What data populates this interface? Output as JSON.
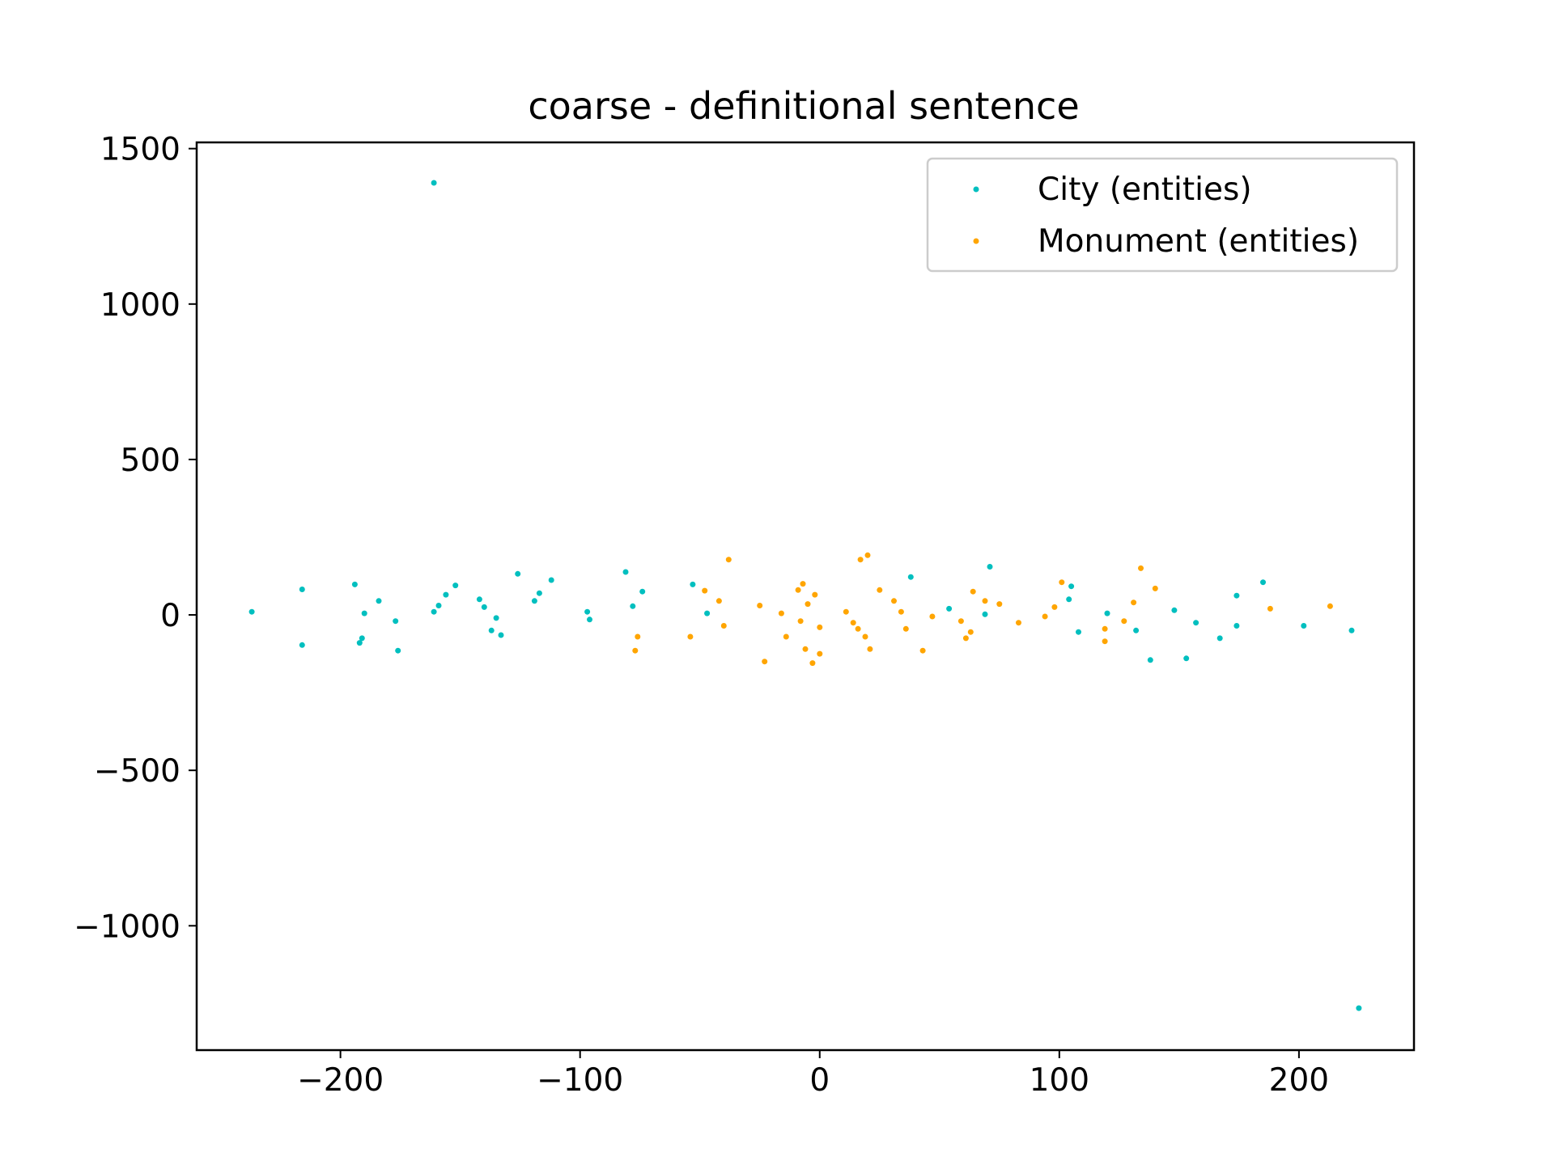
{
  "chart_data": {
    "type": "scatter",
    "title": "coarse - definitional sentence",
    "xlabel": "",
    "ylabel": "",
    "xlim": [
      -260,
      248
    ],
    "ylim": [
      -1400,
      1520
    ],
    "xticks": [
      -200,
      -100,
      0,
      100,
      200
    ],
    "yticks": [
      -1000,
      -500,
      0,
      500,
      1000,
      1500
    ],
    "xtick_labels": [
      "−200",
      "−100",
      "0",
      "100",
      "200"
    ],
    "ytick_labels": [
      "−1000",
      "−500",
      "0",
      "500",
      "1000",
      "1500"
    ],
    "grid": false,
    "legend_position": "top-right",
    "series": [
      {
        "name": "City (entities)",
        "color": "#00bfbf",
        "points": [
          [
            -237,
            10
          ],
          [
            -216,
            82
          ],
          [
            -216,
            -97
          ],
          [
            -194,
            98
          ],
          [
            -192,
            -90
          ],
          [
            -191,
            -75
          ],
          [
            -190,
            5
          ],
          [
            -184,
            45
          ],
          [
            -177,
            -20
          ],
          [
            -176,
            -115
          ],
          [
            -161,
            1390
          ],
          [
            -161,
            10
          ],
          [
            -159,
            30
          ],
          [
            -156,
            65
          ],
          [
            -152,
            95
          ],
          [
            -142,
            50
          ],
          [
            -140,
            25
          ],
          [
            -137,
            -50
          ],
          [
            -135,
            -10
          ],
          [
            -133,
            -65
          ],
          [
            -126,
            132
          ],
          [
            -119,
            45
          ],
          [
            -117,
            70
          ],
          [
            -112,
            112
          ],
          [
            -97,
            10
          ],
          [
            -96,
            -15
          ],
          [
            -81,
            138
          ],
          [
            -78,
            28
          ],
          [
            -74,
            75
          ],
          [
            -53,
            98
          ],
          [
            -47,
            5
          ],
          [
            38,
            122
          ],
          [
            54,
            20
          ],
          [
            69,
            2
          ],
          [
            71,
            155
          ],
          [
            104,
            50
          ],
          [
            105,
            92
          ],
          [
            108,
            -55
          ],
          [
            120,
            5
          ],
          [
            132,
            -50
          ],
          [
            138,
            -145
          ],
          [
            148,
            15
          ],
          [
            153,
            -140
          ],
          [
            157,
            -25
          ],
          [
            167,
            -75
          ],
          [
            174,
            -35
          ],
          [
            174,
            62
          ],
          [
            185,
            105
          ],
          [
            202,
            -35
          ],
          [
            222,
            -50
          ],
          [
            225,
            -1265
          ]
        ]
      },
      {
        "name": "Monument (entities)",
        "color": "#ffa500",
        "points": [
          [
            -77,
            -115
          ],
          [
            -76,
            -70
          ],
          [
            -54,
            -70
          ],
          [
            -48,
            78
          ],
          [
            -42,
            45
          ],
          [
            -40,
            -35
          ],
          [
            -38,
            178
          ],
          [
            -25,
            30
          ],
          [
            -23,
            -150
          ],
          [
            -16,
            5
          ],
          [
            -14,
            -70
          ],
          [
            -9,
            80
          ],
          [
            -8,
            -20
          ],
          [
            -7,
            100
          ],
          [
            -6,
            -110
          ],
          [
            -5,
            35
          ],
          [
            -3,
            -155
          ],
          [
            -2,
            65
          ],
          [
            0,
            -40
          ],
          [
            0,
            -125
          ],
          [
            11,
            10
          ],
          [
            14,
            -25
          ],
          [
            16,
            -45
          ],
          [
            17,
            178
          ],
          [
            19,
            -70
          ],
          [
            20,
            192
          ],
          [
            21,
            -110
          ],
          [
            25,
            80
          ],
          [
            31,
            45
          ],
          [
            34,
            10
          ],
          [
            36,
            -45
          ],
          [
            43,
            -115
          ],
          [
            47,
            -5
          ],
          [
            59,
            -20
          ],
          [
            61,
            -75
          ],
          [
            63,
            -55
          ],
          [
            64,
            75
          ],
          [
            69,
            45
          ],
          [
            75,
            35
          ],
          [
            83,
            -25
          ],
          [
            94,
            -5
          ],
          [
            98,
            25
          ],
          [
            101,
            105
          ],
          [
            119,
            -45
          ],
          [
            119,
            -85
          ],
          [
            127,
            -20
          ],
          [
            131,
            40
          ],
          [
            134,
            150
          ],
          [
            140,
            85
          ],
          [
            188,
            20
          ],
          [
            213,
            28
          ]
        ]
      }
    ]
  }
}
